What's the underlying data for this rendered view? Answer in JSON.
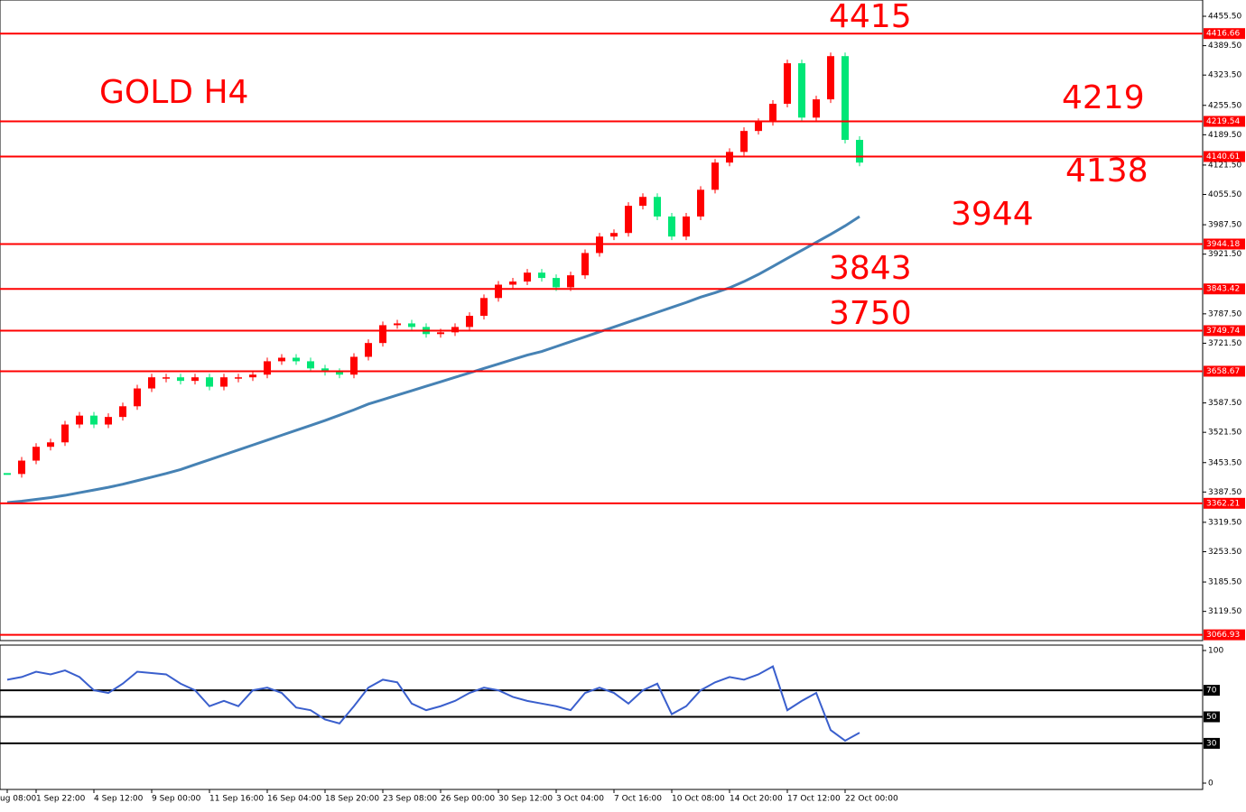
{
  "chart_data": [
    {
      "type": "price",
      "title": "GOLD H4",
      "categories": [
        "ug 08:00",
        null,
        "1 Sep 22:00",
        null,
        null,
        null,
        "4 Sep 12:00",
        null,
        null,
        null,
        "9 Sep 00:00",
        null,
        null,
        null,
        "11 Sep 16:00",
        null,
        null,
        null,
        "16 Sep 04:00",
        null,
        null,
        null,
        "18 Sep 20:00",
        null,
        null,
        null,
        "23 Sep 08:00",
        null,
        null,
        null,
        "26 Sep 00:00",
        null,
        null,
        null,
        "30 Sep 12:00",
        null,
        null,
        null,
        "3 Oct 04:00",
        null,
        null,
        null,
        "7 Oct 16:00",
        null,
        null,
        null,
        "10 Oct 08:00",
        null,
        null,
        null,
        "14 Oct 20:00",
        null,
        null,
        null,
        "17 Oct 12:00",
        null,
        null,
        null,
        "22 Oct 00:00",
        null
      ],
      "close": [
        3428,
        3458,
        3489,
        3499,
        3539,
        3559,
        3539,
        3556,
        3580,
        3620,
        3645,
        3645,
        3637,
        3645,
        3624,
        3645,
        3645,
        3651,
        3681,
        3689,
        3681,
        3665,
        3657,
        3651,
        3691,
        3722,
        3762,
        3766,
        3758,
        3742,
        3746,
        3758,
        3783,
        3823,
        3853,
        3860,
        3880,
        3868,
        3847,
        3874,
        3924,
        3961,
        3969,
        4030,
        4050,
        4006,
        3961,
        4006,
        4066,
        4127,
        4151,
        4198,
        4218,
        4259,
        4350,
        4228,
        4269,
        4366,
        4178,
        4127
      ],
      "up_color": "#ff0000",
      "down_color": "#00e676",
      "ma": {
        "color": "#4682b4",
        "values": [
          3364,
          3367,
          3371,
          3375,
          3380,
          3386,
          3392,
          3398,
          3405,
          3413,
          3421,
          3429,
          3438,
          3449,
          3460,
          3471,
          3482,
          3493,
          3504,
          3515,
          3526,
          3537,
          3548,
          3560,
          3572,
          3585,
          3595,
          3605,
          3615,
          3625,
          3635,
          3645,
          3655,
          3665,
          3675,
          3685,
          3695,
          3703,
          3714,
          3725,
          3736,
          3747,
          3758,
          3769,
          3780,
          3791,
          3802,
          3813,
          3825,
          3835,
          3846,
          3860,
          3876,
          3894,
          3912,
          3930,
          3948,
          3966,
          3985,
          4006
        ]
      },
      "ylim": [
        3054,
        4492
      ],
      "yticks": [
        {
          "value": 4455.5,
          "label": "4455.50"
        },
        {
          "value": 4389.5,
          "label": "4389.50"
        },
        {
          "value": 4323.5,
          "label": "4323.50"
        },
        {
          "value": 4255.5,
          "label": "4255.50"
        },
        {
          "value": 4189.5,
          "label": "4189.50"
        },
        {
          "value": 4121.5,
          "label": "4121.50"
        },
        {
          "value": 4055.5,
          "label": "4055.50"
        },
        {
          "value": 3987.5,
          "label": "3987.50"
        },
        {
          "value": 3921.5,
          "label": "3921.50"
        },
        {
          "value": 3787.5,
          "label": "3787.50"
        },
        {
          "value": 3721.5,
          "label": "3721.50"
        },
        {
          "value": 3587.5,
          "label": "3587.50"
        },
        {
          "value": 3521.5,
          "label": "3521.50"
        },
        {
          "value": 3453.5,
          "label": "3453.50"
        },
        {
          "value": 3387.5,
          "label": "3387.50"
        },
        {
          "value": 3319.5,
          "label": "3319.50"
        },
        {
          "value": 3253.5,
          "label": "3253.50"
        },
        {
          "value": 3185.5,
          "label": "3185.50"
        },
        {
          "value": 3119.5,
          "label": "3119.50"
        }
      ],
      "level_color": "#ff0000",
      "levels": [
        {
          "value": 4416.66,
          "label": "4416.66"
        },
        {
          "value": 4219.54,
          "label": "4219.54"
        },
        {
          "value": 4140.61,
          "label": "4140.61"
        },
        {
          "value": 3944.18,
          "label": "3944.18"
        },
        {
          "value": 3843.42,
          "label": "3843.42"
        },
        {
          "value": 3749.74,
          "label": "3749.74"
        },
        {
          "value": 3658.67,
          "label": "3658.67"
        },
        {
          "value": 3362.21,
          "label": "3362.21"
        },
        {
          "value": 3066.93,
          "label": "3066.93"
        }
      ],
      "annotations": [
        "4415",
        "4219",
        "4138",
        "3944",
        "3843",
        "3750"
      ]
    },
    {
      "type": "rsi",
      "color": "#3a5fcd",
      "values": [
        78,
        80,
        84,
        82,
        85,
        80,
        70,
        68,
        75,
        84,
        83,
        82,
        75,
        70,
        58,
        62,
        58,
        70,
        72,
        68,
        57,
        55,
        48,
        45,
        58,
        72,
        78,
        76,
        60,
        55,
        58,
        62,
        68,
        72,
        70,
        65,
        62,
        60,
        58,
        55,
        68,
        72,
        68,
        60,
        70,
        75,
        52,
        58,
        70,
        76,
        80,
        78,
        82,
        88,
        55,
        62,
        68,
        40,
        32,
        38
      ],
      "ylim": [
        0,
        100
      ],
      "yticks": [
        100,
        0
      ],
      "levels": [
        70,
        50,
        30
      ]
    }
  ]
}
